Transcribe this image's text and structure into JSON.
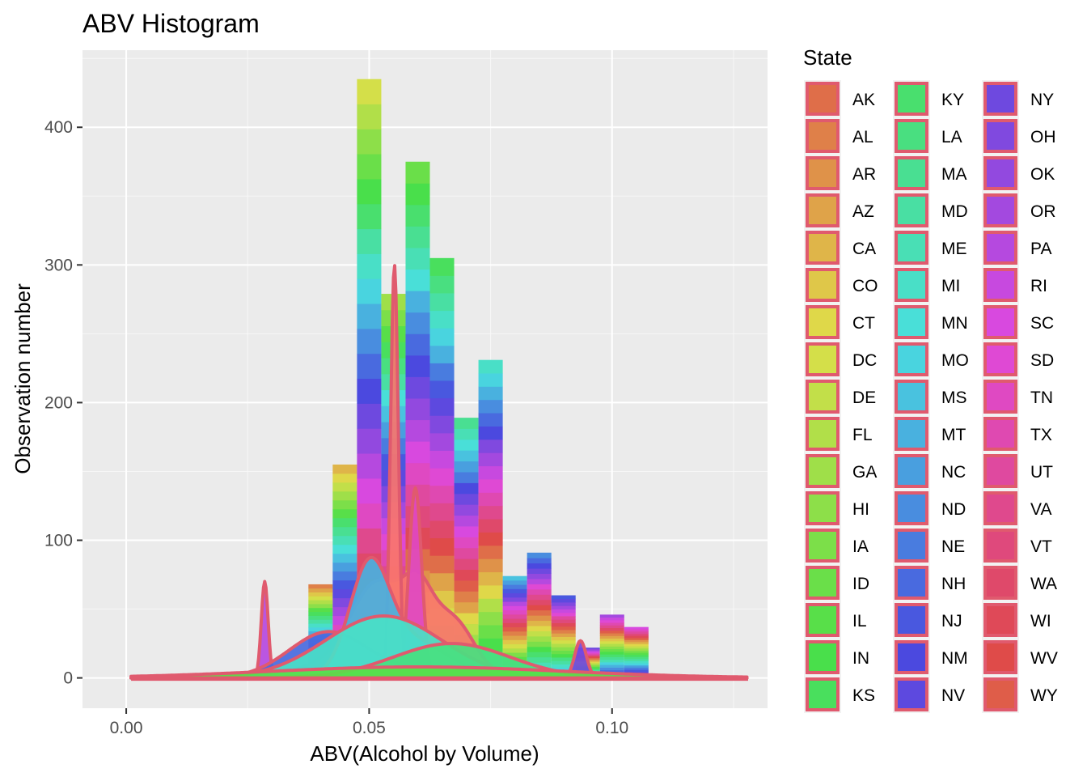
{
  "chart_data": {
    "type": "histogram",
    "title": "ABV Histogram",
    "xlabel": "ABV(Alcohol by Volume)",
    "ylabel": "Observation number",
    "xlim": [
      -0.009,
      0.132
    ],
    "ylim": [
      -22,
      456
    ],
    "x_ticks": [
      0.0,
      0.05,
      0.1
    ],
    "x_tick_labels": [
      "0.00",
      "0.05",
      "0.10"
    ],
    "y_ticks": [
      0,
      100,
      200,
      300,
      400
    ],
    "y_tick_labels": [
      "0",
      "100",
      "200",
      "300",
      "400"
    ],
    "grid": true,
    "bin_width": 0.005,
    "bins": [
      {
        "x": 0.04,
        "count": 68
      },
      {
        "x": 0.045,
        "count": 155
      },
      {
        "x": 0.05,
        "count": 435
      },
      {
        "x": 0.055,
        "count": 279
      },
      {
        "x": 0.06,
        "count": 375
      },
      {
        "x": 0.065,
        "count": 305
      },
      {
        "x": 0.07,
        "count": 189
      },
      {
        "x": 0.075,
        "count": 231
      },
      {
        "x": 0.08,
        "count": 74
      },
      {
        "x": 0.085,
        "count": 91
      },
      {
        "x": 0.09,
        "count": 60
      },
      {
        "x": 0.095,
        "count": 22
      },
      {
        "x": 0.1,
        "count": 46
      },
      {
        "x": 0.105,
        "count": 37
      }
    ],
    "densities": [
      {
        "peaks": [
          [
            0.052,
            62,
            0.0055
          ],
          [
            0.06,
            40,
            0.003
          ],
          [
            0.067,
            42,
            0.0045
          ],
          [
            0.045,
            10,
            0.01
          ]
        ]
      },
      {
        "peaks": [
          [
            0.0552,
            300,
            0.0008
          ]
        ]
      },
      {
        "peaks": [
          [
            0.0595,
            138,
            0.0013
          ]
        ]
      },
      {
        "peaks": [
          [
            0.0285,
            70,
            0.0007
          ]
        ]
      },
      {
        "peaks": [
          [
            0.0935,
            27,
            0.0012
          ]
        ]
      },
      {
        "peaks": [
          [
            0.0415,
            33,
            0.008
          ],
          [
            0.062,
            5,
            0.01
          ]
        ]
      },
      {
        "peaks": [
          [
            0.05,
            70,
            0.004
          ],
          [
            0.058,
            28,
            0.008
          ]
        ]
      },
      {
        "peaks": [
          [
            0.053,
            45,
            0.012
          ]
        ]
      },
      {
        "peaks": [
          [
            0.067,
            25,
            0.012
          ]
        ]
      },
      {
        "peaks": [
          [
            0.06,
            8,
            0.03
          ]
        ]
      }
    ],
    "legend": {
      "title": "State",
      "placement": "right",
      "entries": [
        "AK",
        "AL",
        "AR",
        "AZ",
        "CA",
        "CO",
        "CT",
        "DC",
        "DE",
        "FL",
        "GA",
        "HI",
        "IA",
        "ID",
        "IL",
        "IN",
        "KS",
        "KY",
        "LA",
        "MA",
        "MD",
        "ME",
        "MI",
        "MN",
        "MO",
        "MS",
        "MT",
        "NC",
        "ND",
        "NE",
        "NH",
        "NJ",
        "NM",
        "NV",
        "NY",
        "OH",
        "OK",
        "OR",
        "PA",
        "RI",
        "SC",
        "SD",
        "TN",
        "TX",
        "UT",
        "VA",
        "VT",
        "WA",
        "WI",
        "WV",
        "WY"
      ],
      "columns": 3
    },
    "colors": {
      "panel_background": "#ebebeb",
      "grid_line": "#ffffff",
      "density_outline": "#e05a6e",
      "density_fill": "#f8766d"
    }
  }
}
